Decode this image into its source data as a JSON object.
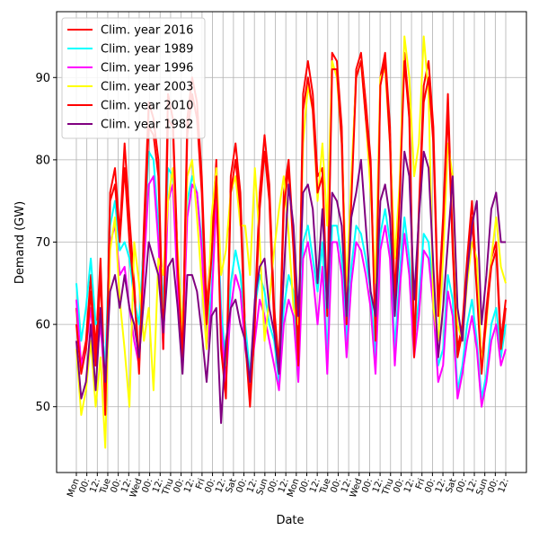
{
  "chart_data": {
    "type": "line",
    "xlabel": "Date",
    "ylabel": "Demand (GW)",
    "ylim": [
      42,
      98
    ],
    "yticks": [
      50,
      60,
      70,
      80,
      90
    ],
    "grid": true,
    "legend_position": "top-left",
    "x_ticks": [
      "Mon",
      "00:",
      "12:",
      "Tue",
      "00:",
      "12:",
      "Wed",
      "00:",
      "12:",
      "Thu",
      "00:",
      "12:",
      "Fri",
      "00:",
      "12:",
      "Sat",
      "00:",
      "12:",
      "Sun",
      "00:",
      "12:",
      "Mon",
      "00:",
      "12:",
      "Tue",
      "00:",
      "12:",
      "Wed",
      "00:",
      "12:",
      "Thu",
      "00:",
      "12:",
      "Fri",
      "00:",
      "12:",
      "Sat",
      "00:",
      "12:",
      "Sun",
      "00:",
      "12:"
    ],
    "series": [
      {
        "name": "Clim. year 2016",
        "color": "#ff0000",
        "values": [
          62,
          55,
          58,
          66,
          57,
          68,
          50,
          76,
          79,
          71,
          82,
          73,
          65,
          55,
          72,
          87,
          85,
          80,
          58,
          88,
          85,
          68,
          57,
          85,
          90,
          87,
          78,
          62,
          70,
          80,
          58,
          52,
          78,
          82,
          76,
          59,
          51,
          62,
          76,
          83,
          77,
          62,
          55,
          76,
          80,
          70,
          56,
          88,
          92,
          88,
          78,
          79,
          62,
          93,
          92,
          84,
          61,
          76,
          91,
          93,
          87,
          80,
          59,
          90,
          93,
          84,
          63,
          76,
          93,
          86,
          57,
          74,
          89,
          92,
          84,
          62,
          73,
          88,
          70,
          57,
          60,
          68,
          75,
          65,
          55,
          62,
          68,
          70,
          58,
          63
        ]
      },
      {
        "name": "Clim. year 1989",
        "color": "#00ffff",
        "values": [
          65,
          58,
          62,
          68,
          60,
          61,
          55,
          72,
          75,
          69,
          70,
          68,
          63,
          60,
          70,
          81,
          80,
          72,
          62,
          79,
          78,
          66,
          60,
          75,
          78,
          76,
          70,
          58,
          64,
          77,
          62,
          55,
          65,
          69,
          66,
          60,
          54,
          62,
          66,
          64,
          60,
          58,
          53,
          62,
          66,
          64,
          55,
          70,
          72,
          68,
          64,
          70,
          56,
          72,
          72,
          68,
          58,
          67,
          72,
          71,
          68,
          64,
          56,
          71,
          74,
          70,
          57,
          66,
          73,
          68,
          58,
          63,
          71,
          70,
          64,
          55,
          57,
          66,
          63,
          52,
          55,
          60,
          63,
          58,
          51,
          54,
          60,
          62,
          56,
          60
        ]
      },
      {
        "name": "Clim. year 1996",
        "color": "#ff00ff",
        "values": [
          63,
          55,
          57,
          62,
          55,
          60,
          52,
          70,
          72,
          66,
          67,
          62,
          58,
          55,
          67,
          77,
          78,
          70,
          57,
          75,
          77,
          64,
          57,
          73,
          77,
          76,
          69,
          57,
          62,
          75,
          60,
          53,
          62,
          66,
          64,
          57,
          53,
          58,
          63,
          61,
          58,
          55,
          52,
          60,
          63,
          61,
          53,
          68,
          70,
          66,
          60,
          67,
          54,
          70,
          70,
          66,
          56,
          65,
          70,
          69,
          66,
          62,
          54,
          69,
          72,
          68,
          55,
          64,
          71,
          66,
          56,
          61,
          69,
          68,
          62,
          53,
          55,
          64,
          61,
          51,
          54,
          58,
          61,
          57,
          50,
          53,
          58,
          60,
          55,
          57
        ]
      },
      {
        "name": "Clim. year 2003",
        "color": "#ffff00",
        "values": [
          57,
          49,
          52,
          58,
          50,
          56,
          45,
          69,
          73,
          63,
          57,
          50,
          70,
          65,
          58,
          62,
          52,
          68,
          66,
          75,
          79,
          69,
          59,
          78,
          80,
          73,
          65,
          57,
          73,
          79,
          66,
          69,
          76,
          78,
          72,
          72,
          66,
          79,
          70,
          58,
          63,
          69,
          74,
          78,
          71,
          62,
          60,
          82,
          89,
          86,
          75,
          82,
          72,
          92,
          90,
          82,
          64,
          78,
          90,
          92,
          85,
          76,
          65,
          90,
          91,
          82,
          68,
          77,
          95,
          90,
          78,
          82,
          95,
          88,
          62,
          58,
          68,
          82,
          78,
          60,
          58,
          65,
          70,
          68,
          55,
          60,
          68,
          73,
          67,
          65
        ]
      },
      {
        "name": "Clim. year 2010",
        "color": "#ff0000",
        "values": [
          60,
          54,
          57,
          64,
          55,
          66,
          49,
          75,
          77,
          70,
          79,
          70,
          64,
          54,
          70,
          84,
          83,
          78,
          57,
          85,
          84,
          67,
          56,
          83,
          88,
          85,
          76,
          60,
          68,
          78,
          57,
          51,
          76,
          80,
          74,
          58,
          50,
          60,
          74,
          81,
          75,
          60,
          54,
          74,
          79,
          69,
          55,
          86,
          90,
          86,
          76,
          78,
          61,
          91,
          91,
          82,
          60,
          75,
          90,
          92,
          85,
          79,
          58,
          89,
          92,
          82,
          62,
          75,
          92,
          85,
          56,
          73,
          87,
          90,
          82,
          61,
          72,
          86,
          69,
          56,
          59,
          67,
          73,
          64,
          54,
          61,
          67,
          69,
          57,
          62
        ]
      },
      {
        "name": "Clim. year 1982",
        "color": "#800080",
        "values": [
          58,
          51,
          53,
          60,
          52,
          62,
          53,
          64,
          66,
          62,
          66,
          62,
          60,
          56,
          63,
          70,
          68,
          66,
          59,
          67,
          68,
          62,
          54,
          66,
          66,
          64,
          59,
          53,
          61,
          62,
          48,
          58,
          62,
          63,
          60,
          58,
          53,
          63,
          67,
          68,
          62,
          59,
          54,
          66,
          77,
          72,
          61,
          76,
          77,
          74,
          65,
          74,
          62,
          76,
          75,
          72,
          61,
          73,
          76,
          80,
          72,
          64,
          61,
          75,
          77,
          73,
          61,
          70,
          81,
          78,
          63,
          73,
          81,
          79,
          67,
          56,
          62,
          70,
          78,
          62,
          58,
          66,
          72,
          75,
          60,
          66,
          74,
          76,
          70,
          70
        ]
      }
    ],
    "legend": [
      {
        "label": "Clim. year 2016",
        "color": "#ff0000"
      },
      {
        "label": "Clim. year 1989",
        "color": "#00ffff"
      },
      {
        "label": "Clim. year 1996",
        "color": "#ff00ff"
      },
      {
        "label": "Clim. year 2003",
        "color": "#ffff00"
      },
      {
        "label": "Clim. year 2010",
        "color": "#ff0000"
      },
      {
        "label": "Clim. year 1982",
        "color": "#800080"
      }
    ]
  }
}
